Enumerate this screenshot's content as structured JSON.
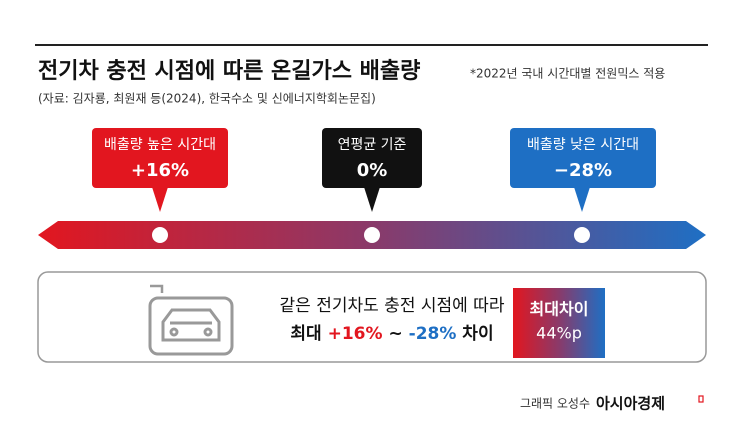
{
  "header": {
    "title": "전기차 충전 시점에 따른 온길가스 배출량",
    "note": "*2022년 국내 시간대별 전원믹스 적용",
    "source": "(자료: 김자룡, 최원재 등(2024), 한국수소 및 신에너지학회논문집)"
  },
  "callouts": [
    {
      "label": "배출량 높은 시간대",
      "value": "+16%"
    },
    {
      "label": "연평균 기준",
      "value": "0%"
    },
    {
      "label": "배출량 낮은 시간대",
      "value": "−28%"
    }
  ],
  "summary": {
    "line1": "같은 전기차도 충전 시점에 따라",
    "line2": {
      "prefix": "최대 ",
      "high": "+16%",
      "sep": " ~ ",
      "low": "-28%",
      "suffix": " 차이"
    },
    "badge": {
      "label": "최대차이",
      "value": "44%p"
    }
  },
  "footer": {
    "credit": "그래픽 오성수",
    "brand": "아시아경제"
  }
}
